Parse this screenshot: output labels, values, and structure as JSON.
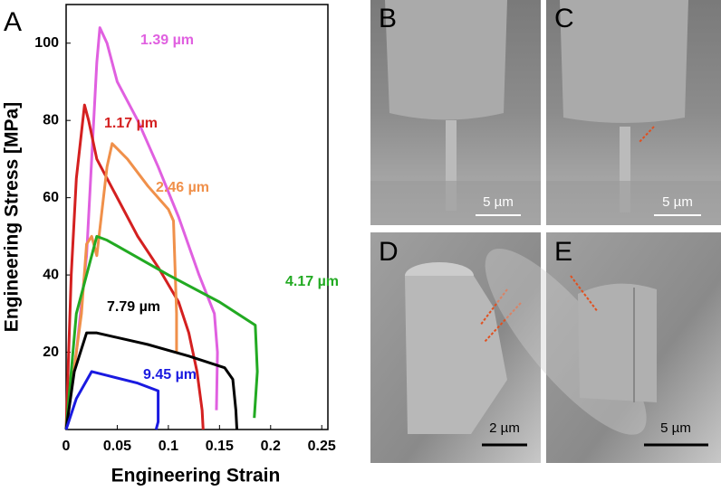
{
  "chart_data": {
    "type": "line",
    "xlabel": "Engineering Strain",
    "ylabel": "Engineering Stress [MPa]",
    "xlim": [
      0,
      0.256
    ],
    "ylim": [
      0,
      110
    ],
    "xticks": [
      0,
      0.05,
      0.1,
      0.15,
      0.2,
      0.25
    ],
    "yticks": [
      20,
      40,
      60,
      80,
      100
    ],
    "series": [
      {
        "name": "1.39 µm",
        "color": "#e060e0",
        "x": [
          0,
          0.01,
          0.02,
          0.025,
          0.03,
          0.033,
          0.04,
          0.05,
          0.07,
          0.09,
          0.11,
          0.13,
          0.145,
          0.148,
          0.147
        ],
        "values": [
          0,
          20,
          45,
          70,
          95,
          104,
          100,
          90,
          80,
          68,
          55,
          40,
          30,
          20,
          5
        ]
      },
      {
        "name": "1.17 µm",
        "color": "#d42020",
        "x": [
          0,
          0.005,
          0.01,
          0.018,
          0.022,
          0.03,
          0.05,
          0.07,
          0.09,
          0.11,
          0.12,
          0.128,
          0.133,
          0.134
        ],
        "values": [
          0,
          40,
          65,
          84,
          80,
          70,
          60,
          50,
          42,
          33,
          25,
          15,
          5,
          0
        ]
      },
      {
        "name": "2.46 µm",
        "color": "#f0904a",
        "x": [
          0,
          0.015,
          0.02,
          0.025,
          0.03,
          0.04,
          0.045,
          0.06,
          0.08,
          0.1,
          0.105,
          0.108,
          0.108
        ],
        "values": [
          0,
          30,
          48,
          50,
          45,
          68,
          74,
          70,
          63,
          57,
          54,
          30,
          20
        ]
      },
      {
        "name": "4.17 µm",
        "color": "#22aa22",
        "x": [
          0,
          0.01,
          0.03,
          0.04,
          0.1,
          0.15,
          0.185,
          0.187,
          0.184
        ],
        "values": [
          0,
          30,
          50,
          49,
          40,
          33,
          27,
          15,
          3
        ]
      },
      {
        "name": "7.79 µm",
        "color": "#000000",
        "x": [
          0,
          0.008,
          0.02,
          0.03,
          0.08,
          0.12,
          0.155,
          0.163,
          0.166,
          0.167
        ],
        "values": [
          0,
          15,
          25,
          25,
          22,
          19,
          16,
          13,
          5,
          0
        ]
      },
      {
        "name": "9.45 µm",
        "color": "#1a1ae0",
        "x": [
          0,
          0.01,
          0.025,
          0.04,
          0.07,
          0.09,
          0.09,
          0.088
        ],
        "values": [
          0,
          8,
          15,
          14,
          12,
          10,
          2,
          0
        ]
      }
    ]
  },
  "panels": {
    "a": "A",
    "b": "B",
    "c": "C",
    "d": "D",
    "e": "E"
  },
  "scale_bars": {
    "b": "5 µm",
    "c": "5 µm",
    "d": "2 µm",
    "e": "5 µm"
  }
}
